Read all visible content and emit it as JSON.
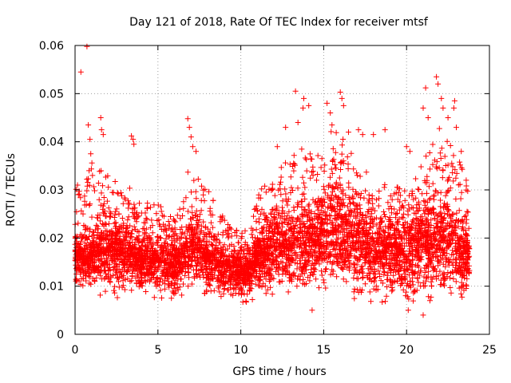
{
  "chart_data": {
    "type": "scatter",
    "title": "Day 121 of 2018, Rate Of TEC Index for receiver mtsf",
    "xlabel": "GPS time / hours",
    "ylabel": "ROTI / TECUs",
    "xlim": [
      0,
      25
    ],
    "ylim": [
      0,
      0.06
    ],
    "x_ticks": [
      0,
      5,
      10,
      15,
      20,
      25
    ],
    "x_tick_labels": [
      "0",
      "5",
      "10",
      "15",
      "20",
      "25"
    ],
    "y_ticks": [
      0,
      0.01,
      0.02,
      0.03,
      0.04,
      0.05,
      0.06
    ],
    "y_tick_labels": [
      "0",
      "0.01",
      "0.02",
      "0.03",
      "0.04",
      "0.05",
      "0.06"
    ],
    "grid": true,
    "marker": "plus",
    "series": [
      {
        "name": "ROTI",
        "color": "#ff0000",
        "points_note": "approx. 6000 points sampled every ~15 s between 0 and 23.8 h; envelope below",
        "envelope": {
          "x": [
            0,
            0.5,
            1,
            2,
            3,
            3.5,
            4,
            5,
            6,
            6.5,
            7,
            7.5,
            8,
            9,
            9.5,
            10,
            10.5,
            11,
            12,
            13,
            13.5,
            14,
            15,
            15.5,
            16,
            17,
            18,
            19,
            20,
            21,
            21.5,
            22,
            23,
            23.8
          ],
          "low": [
            0.011,
            0.008,
            0.008,
            0.008,
            0.007,
            0.008,
            0.007,
            0.007,
            0.006,
            0.008,
            0.009,
            0.008,
            0.007,
            0.007,
            0.007,
            0.006,
            0.006,
            0.008,
            0.007,
            0.006,
            0.006,
            0.007,
            0.008,
            0.008,
            0.008,
            0.007,
            0.006,
            0.007,
            0.006,
            0.006,
            0.005,
            0.006,
            0.007,
            0.007
          ],
          "mid": [
            0.017,
            0.015,
            0.016,
            0.017,
            0.016,
            0.016,
            0.015,
            0.015,
            0.014,
            0.015,
            0.018,
            0.017,
            0.015,
            0.013,
            0.013,
            0.012,
            0.012,
            0.016,
            0.018,
            0.018,
            0.019,
            0.018,
            0.02,
            0.021,
            0.021,
            0.019,
            0.017,
            0.017,
            0.016,
            0.018,
            0.019,
            0.02,
            0.018,
            0.015
          ],
          "high": [
            0.03,
            0.033,
            0.036,
            0.033,
            0.031,
            0.03,
            0.029,
            0.027,
            0.025,
            0.027,
            0.038,
            0.034,
            0.031,
            0.024,
            0.023,
            0.021,
            0.022,
            0.03,
            0.033,
            0.038,
            0.042,
            0.037,
            0.04,
            0.044,
            0.044,
            0.036,
            0.032,
            0.031,
            0.03,
            0.036,
            0.04,
            0.043,
            0.039,
            0.03
          ]
        },
        "spikes": [
          {
            "x": 0.15,
            "y": 0.031
          },
          {
            "x": 0.2,
            "y": 0.029
          },
          {
            "x": 0.35,
            "y": 0.0545
          },
          {
            "x": 0.72,
            "y": 0.0598
          },
          {
            "x": 0.8,
            "y": 0.0435
          },
          {
            "x": 0.9,
            "y": 0.0405
          },
          {
            "x": 0.95,
            "y": 0.0375
          },
          {
            "x": 0.85,
            "y": 0.034
          },
          {
            "x": 1.55,
            "y": 0.045
          },
          {
            "x": 1.6,
            "y": 0.0425
          },
          {
            "x": 1.7,
            "y": 0.0415
          },
          {
            "x": 3.4,
            "y": 0.0412
          },
          {
            "x": 3.5,
            "y": 0.0405
          },
          {
            "x": 3.55,
            "y": 0.0395
          },
          {
            "x": 6.8,
            "y": 0.0448
          },
          {
            "x": 6.9,
            "y": 0.043
          },
          {
            "x": 7.0,
            "y": 0.041
          },
          {
            "x": 7.1,
            "y": 0.039
          },
          {
            "x": 7.3,
            "y": 0.038
          },
          {
            "x": 12.2,
            "y": 0.039
          },
          {
            "x": 12.7,
            "y": 0.043
          },
          {
            "x": 13.3,
            "y": 0.0505
          },
          {
            "x": 13.45,
            "y": 0.044
          },
          {
            "x": 13.8,
            "y": 0.049
          },
          {
            "x": 13.75,
            "y": 0.047
          },
          {
            "x": 14.1,
            "y": 0.0475
          },
          {
            "x": 15.2,
            "y": 0.048
          },
          {
            "x": 15.4,
            "y": 0.046
          },
          {
            "x": 15.5,
            "y": 0.0435
          },
          {
            "x": 16.0,
            "y": 0.0503
          },
          {
            "x": 16.1,
            "y": 0.049
          },
          {
            "x": 16.2,
            "y": 0.0475
          },
          {
            "x": 16.5,
            "y": 0.042
          },
          {
            "x": 17.1,
            "y": 0.0425
          },
          {
            "x": 17.35,
            "y": 0.0415
          },
          {
            "x": 18.0,
            "y": 0.0415
          },
          {
            "x": 18.7,
            "y": 0.0425
          },
          {
            "x": 20.0,
            "y": 0.039
          },
          {
            "x": 20.2,
            "y": 0.038
          },
          {
            "x": 21.15,
            "y": 0.0512
          },
          {
            "x": 21.0,
            "y": 0.047
          },
          {
            "x": 21.3,
            "y": 0.045
          },
          {
            "x": 21.8,
            "y": 0.0535
          },
          {
            "x": 21.9,
            "y": 0.052
          },
          {
            "x": 22.1,
            "y": 0.049
          },
          {
            "x": 22.2,
            "y": 0.047
          },
          {
            "x": 22.9,
            "y": 0.0485
          },
          {
            "x": 22.85,
            "y": 0.047
          },
          {
            "x": 22.5,
            "y": 0.045
          },
          {
            "x": 23.0,
            "y": 0.043
          },
          {
            "x": 23.3,
            "y": 0.038
          },
          {
            "x": 23.6,
            "y": 0.032
          },
          {
            "x": 21.0,
            "y": 0.004
          },
          {
            "x": 20.1,
            "y": 0.005
          },
          {
            "x": 14.3,
            "y": 0.005
          }
        ]
      }
    ]
  }
}
